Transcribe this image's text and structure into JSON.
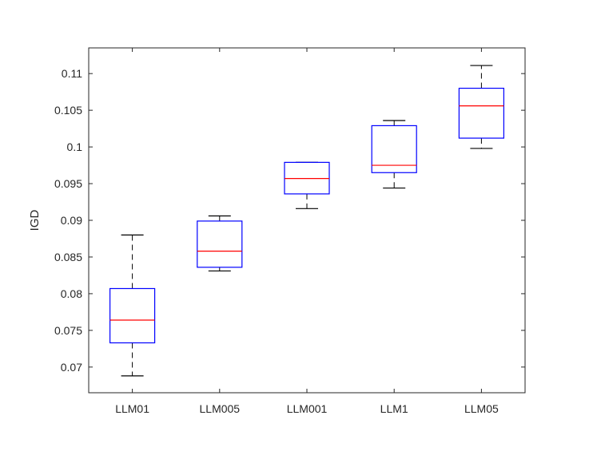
{
  "chart_data": {
    "type": "box",
    "title": "",
    "xlabel": "",
    "ylabel": "IGD",
    "ylim": [
      0.0665,
      0.1135
    ],
    "yticks": [
      0.07,
      0.075,
      0.08,
      0.085,
      0.09,
      0.095,
      0.1,
      0.105,
      0.11
    ],
    "ytick_labels": [
      "0.07",
      "0.075",
      "0.08",
      "0.085",
      "0.09",
      "0.095",
      "0.1",
      "0.105",
      "0.11"
    ],
    "grid": false,
    "legend": "none",
    "categories": [
      "LLM01",
      "LLM005",
      "LLM001",
      "LLM1",
      "LLM05"
    ],
    "boxes": [
      {
        "name": "LLM01",
        "min": 0.0688,
        "q1": 0.0733,
        "median": 0.0764,
        "q3": 0.0807,
        "max": 0.088
      },
      {
        "name": "LLM005",
        "min": 0.0831,
        "q1": 0.0836,
        "median": 0.0858,
        "q3": 0.0899,
        "max": 0.0906
      },
      {
        "name": "LLM001",
        "min": 0.0916,
        "q1": 0.0936,
        "median": 0.0957,
        "q3": 0.0979,
        "max": 0.0979
      },
      {
        "name": "LLM1",
        "min": 0.0944,
        "q1": 0.0965,
        "median": 0.0975,
        "q3": 0.1029,
        "max": 0.1036
      },
      {
        "name": "LLM05",
        "min": 0.0998,
        "q1": 0.1012,
        "median": 0.1056,
        "q3": 0.108,
        "max": 0.1111
      }
    ],
    "colors": {
      "box": "#0000ff",
      "median": "#ff0000",
      "whisker": "#000000",
      "axes": "#262626"
    }
  }
}
